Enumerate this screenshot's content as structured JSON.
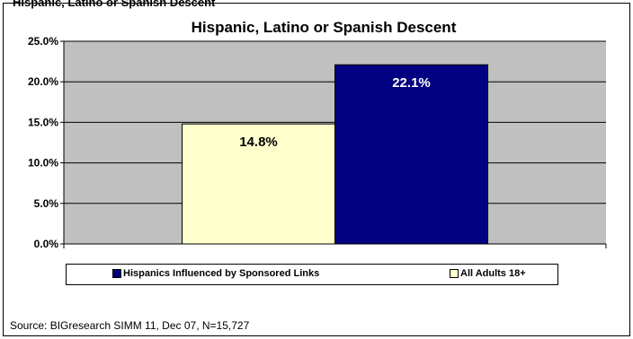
{
  "page": {
    "top_cut_text": "Hispanic, Latino or Spanish Descent",
    "source_note": "Source: BIGresearch SIMM 11, Dec 07, N=15,727"
  },
  "chart_data": {
    "type": "bar",
    "title": "Hispanic, Latino or Spanish Descent",
    "xlabel": "",
    "ylabel": "",
    "ylim": [
      0,
      25
    ],
    "yticks": [
      "0.0%",
      "5.0%",
      "10.0%",
      "15.0%",
      "20.0%",
      "25.0%"
    ],
    "grid": true,
    "legend_position": "bottom",
    "series": [
      {
        "name": "All Adults 18+",
        "value": 14.8,
        "label": "14.8%",
        "color": "#FFFFCC",
        "label_color": "#000000"
      },
      {
        "name": "Hispanics Influenced by Sponsored Links",
        "value": 22.1,
        "label": "22.1%",
        "color": "#000080",
        "label_color": "#FFFFFF"
      }
    ],
    "legend_order": [
      "Hispanics Influenced by Sponsored Links",
      "All Adults 18+"
    ],
    "plot_background": "#C0C0C0"
  }
}
